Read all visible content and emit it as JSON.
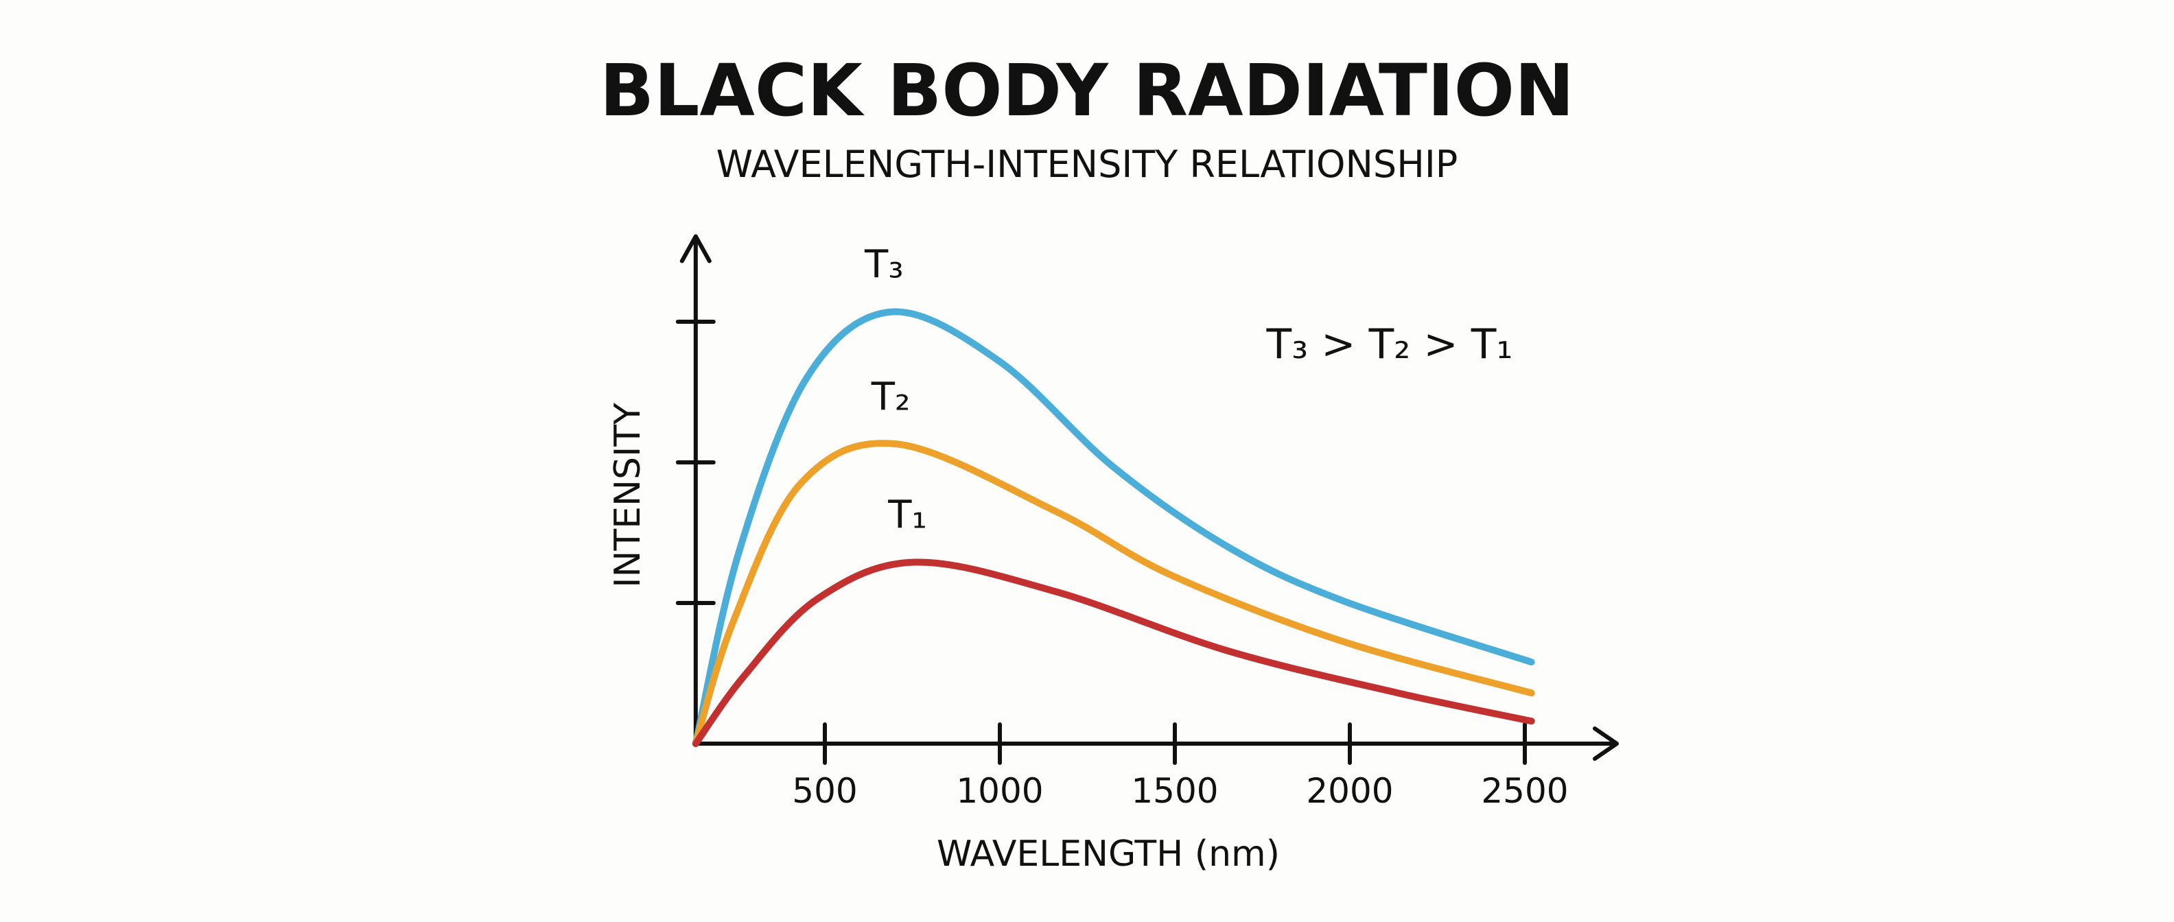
{
  "chart_data": {
    "type": "line",
    "title": "BLACK BODY RADIATION",
    "subtitle": "WAVELENGTH-INTENSITY RELATIONSHIP",
    "xlabel": "WAVELENGTH (nm)",
    "ylabel": "INTENSITY",
    "x_ticks": [
      500,
      1000,
      1500,
      2000,
      2500
    ],
    "x_tick_labels": [
      "500",
      "1000",
      "1500",
      "2000",
      "2500"
    ],
    "y_ticks": [
      1,
      2,
      3
    ],
    "y_tick_labels": [],
    "xlim": [
      130,
      2700
    ],
    "ylim": [
      0,
      3.5
    ],
    "grid": false,
    "annotation": "T₃ > T₂ > T₁",
    "series": [
      {
        "name": "T₃",
        "color": "#4aaed8",
        "x": [
          131,
          253,
          448,
          689,
          998,
          1323,
          1651,
          1976,
          2519
        ],
        "y": [
          0,
          1.35,
          2.6,
          3.07,
          2.72,
          1.97,
          1.4,
          1.02,
          0.58
        ]
      },
      {
        "name": "T₂",
        "color": "#eea12a",
        "x": [
          131,
          237,
          431,
          708,
          1161,
          1488,
          1976,
          2519
        ],
        "y": [
          0,
          0.86,
          1.85,
          2.13,
          1.65,
          1.2,
          0.73,
          0.36
        ]
      },
      {
        "name": "T₁",
        "color": "#c23030",
        "x": [
          131,
          269,
          479,
          756,
          1161,
          1651,
          2138,
          2519
        ],
        "y": [
          0,
          0.48,
          1.03,
          1.29,
          1.08,
          0.66,
          0.36,
          0.16
        ]
      }
    ]
  }
}
